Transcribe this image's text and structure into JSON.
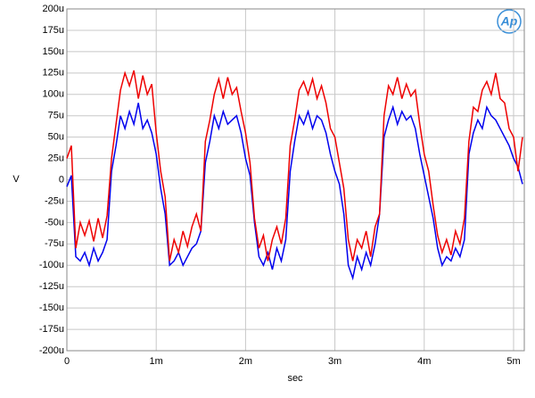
{
  "chart_data": {
    "type": "line",
    "xlabel": "sec",
    "ylabel": "V",
    "logo": "Ap",
    "grid": true,
    "xlim": [
      0,
      0.00512
    ],
    "ylim": [
      -0.0002,
      0.0002
    ],
    "xticks": [
      0,
      {
        "value": 0.001,
        "label": "1m"
      },
      {
        "value": 0.002,
        "label": "2m"
      },
      {
        "value": 0.003,
        "label": "3m"
      },
      {
        "value": 0.004,
        "label": "4m"
      },
      {
        "value": 0.005,
        "label": "5m"
      }
    ],
    "yticks": [
      {
        "value": -0.0002,
        "label": "-200u"
      },
      {
        "value": -0.000175,
        "label": "-175u"
      },
      {
        "value": -0.00015,
        "label": "-150u"
      },
      {
        "value": -0.000125,
        "label": "-125u"
      },
      {
        "value": -0.0001,
        "label": "-100u"
      },
      {
        "value": -7.5e-05,
        "label": "-75u"
      },
      {
        "value": -5e-05,
        "label": "-50u"
      },
      {
        "value": -2.5e-05,
        "label": "-25u"
      },
      0,
      {
        "value": 2.5e-05,
        "label": "25u"
      },
      {
        "value": 5e-05,
        "label": "50u"
      },
      {
        "value": 7.5e-05,
        "label": "75u"
      },
      {
        "value": 0.0001,
        "label": "100u"
      },
      {
        "value": 0.000125,
        "label": "125u"
      },
      {
        "value": 0.00015,
        "label": "150u"
      },
      {
        "value": 0.000175,
        "label": "175u"
      },
      {
        "value": 0.0002,
        "label": "200u"
      }
    ],
    "x": [
      0,
      5e-05,
      0.0001,
      0.00015,
      0.0002,
      0.00025,
      0.0003,
      0.00035,
      0.0004,
      0.00045,
      0.0005,
      0.00055,
      0.0006,
      0.00065,
      0.0007,
      0.00075,
      0.0008,
      0.00085,
      0.0009,
      0.00095,
      0.001,
      0.00105,
      0.0011,
      0.00115,
      0.0012,
      0.00125,
      0.0013,
      0.00135,
      0.0014,
      0.00145,
      0.0015,
      0.00155,
      0.0016,
      0.00165,
      0.0017,
      0.00175,
      0.0018,
      0.00185,
      0.0019,
      0.00195,
      0.002,
      0.00205,
      0.0021,
      0.00215,
      0.0022,
      0.00225,
      0.0023,
      0.00235,
      0.0024,
      0.00245,
      0.0025,
      0.00255,
      0.0026,
      0.00265,
      0.0027,
      0.00275,
      0.0028,
      0.00285,
      0.0029,
      0.00295,
      0.003,
      0.00305,
      0.0031,
      0.00315,
      0.0032,
      0.00325,
      0.0033,
      0.00335,
      0.0034,
      0.00345,
      0.0035,
      0.00355,
      0.0036,
      0.00365,
      0.0037,
      0.00375,
      0.0038,
      0.00385,
      0.0039,
      0.00395,
      0.004,
      0.00405,
      0.0041,
      0.00415,
      0.0042,
      0.00425,
      0.0043,
      0.00435,
      0.0044,
      0.00445,
      0.0045,
      0.00455,
      0.0046,
      0.00465,
      0.0047,
      0.00475,
      0.0048,
      0.00485,
      0.0049,
      0.00495,
      0.005,
      0.00505,
      0.0051
    ],
    "series": [
      {
        "color": "#0000ee",
        "values": [
          -8e-06,
          5e-06,
          -9e-05,
          -9.5e-05,
          -8.5e-05,
          -0.0001,
          -8e-05,
          -9.5e-05,
          -8.5e-05,
          -7e-05,
          1e-05,
          4e-05,
          7.5e-05,
          6e-05,
          8e-05,
          6.5e-05,
          9e-05,
          6e-05,
          7e-05,
          5.5e-05,
          3e-05,
          -1e-05,
          -4e-05,
          -0.0001,
          -9.5e-05,
          -8.5e-05,
          -0.0001,
          -9e-05,
          -8e-05,
          -7.5e-05,
          -6e-05,
          2e-05,
          4.5e-05,
          7.5e-05,
          6e-05,
          8e-05,
          6.5e-05,
          7e-05,
          7.5e-05,
          5.5e-05,
          2.5e-05,
          5e-06,
          -5e-05,
          -9e-05,
          -0.0001,
          -8.5e-05,
          -0.000105,
          -8e-05,
          -9.5e-05,
          -7e-05,
          1e-05,
          4.5e-05,
          7.5e-05,
          6.5e-05,
          8e-05,
          6e-05,
          7.5e-05,
          7e-05,
          5.5e-05,
          3e-05,
          1e-05,
          -5e-06,
          -4e-05,
          -0.0001,
          -0.000115,
          -9e-05,
          -0.000105,
          -8.5e-05,
          -0.0001,
          -7.5e-05,
          -4e-05,
          5e-05,
          7e-05,
          8.5e-05,
          6.5e-05,
          8e-05,
          7e-05,
          7.5e-05,
          6e-05,
          3e-05,
          5e-06,
          -2e-05,
          -4.5e-05,
          -8e-05,
          -0.0001,
          -9e-05,
          -9.5e-05,
          -8e-05,
          -9e-05,
          -7e-05,
          3e-05,
          5.5e-05,
          7e-05,
          6e-05,
          8.5e-05,
          7.5e-05,
          7e-05,
          6e-05,
          5e-05,
          4e-05,
          2.5e-05,
          1.5e-05,
          -5e-06
        ]
      },
      {
        "color": "#ee0000",
        "values": [
          2.5e-05,
          4e-05,
          -8e-05,
          -5e-05,
          -6.5e-05,
          -4.8e-05,
          -7.2e-05,
          -4.5e-05,
          -6.8e-05,
          -4.2e-05,
          2.5e-05,
          6.5e-05,
          0.000105,
          0.000125,
          0.00011,
          0.000128,
          9.5e-05,
          0.000122,
          0.0001,
          0.000112,
          5.5e-05,
          1e-05,
          -2e-05,
          -9.5e-05,
          -7e-05,
          -8.5e-05,
          -6e-05,
          -7.8e-05,
          -5.5e-05,
          -4e-05,
          -6e-05,
          4.5e-05,
          7e-05,
          0.0001,
          0.000118,
          9.5e-05,
          0.00012,
          0.0001,
          0.000108,
          8e-05,
          5.5e-05,
          2e-05,
          -4.5e-05,
          -8e-05,
          -6.5e-05,
          -9.5e-05,
          -7e-05,
          -5.5e-05,
          -7.5e-05,
          -4.5e-05,
          4e-05,
          7e-05,
          0.000105,
          0.000115,
          0.0001,
          0.000118,
          9.5e-05,
          0.00011,
          9e-05,
          6e-05,
          5e-05,
          2e-05,
          -1e-05,
          -7e-05,
          -9.5e-05,
          -7e-05,
          -8e-05,
          -6e-05,
          -9e-05,
          -5.5e-05,
          -4e-05,
          7.5e-05,
          0.00011,
          0.0001,
          0.00012,
          9.5e-05,
          0.000112,
          9.8e-05,
          0.000105,
          6.5e-05,
          3e-05,
          1e-05,
          -3e-05,
          -6.5e-05,
          -8.5e-05,
          -7e-05,
          -8.8e-05,
          -6e-05,
          -7.5e-05,
          -4.5e-05,
          4.5e-05,
          8.5e-05,
          8e-05,
          0.000105,
          0.000115,
          0.0001,
          0.000125,
          9.5e-05,
          9e-05,
          6e-05,
          5e-05,
          1e-05,
          5e-05
        ]
      }
    ]
  }
}
